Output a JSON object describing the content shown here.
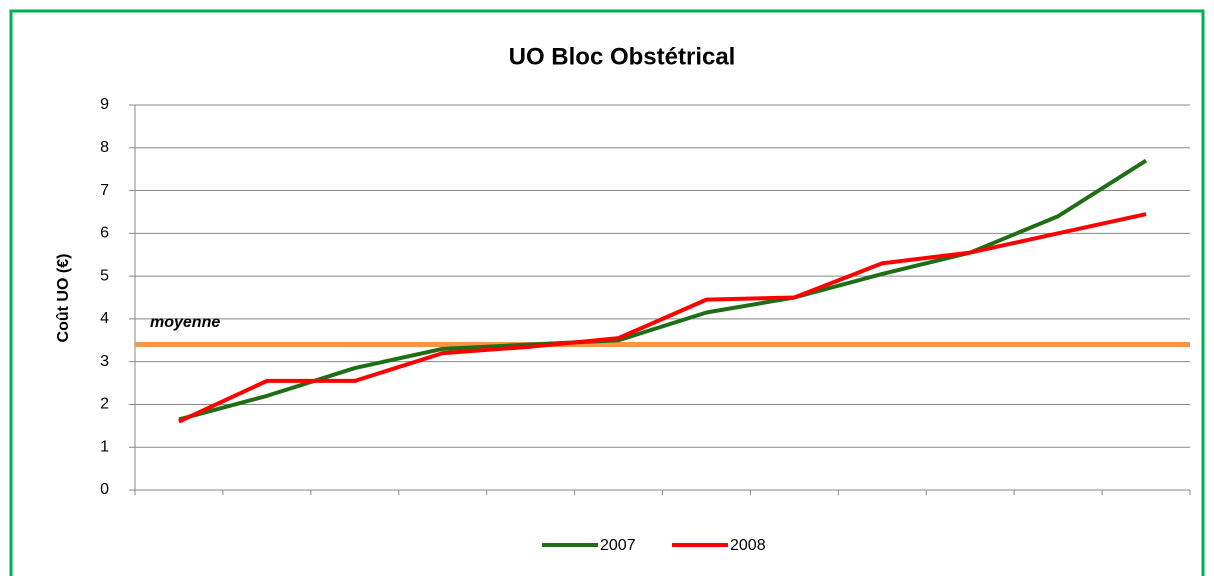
{
  "chart_data": {
    "type": "line",
    "title": "UO Bloc Obstétrical",
    "y_label": "Coût UO (€)",
    "categories": [
      null,
      null,
      null,
      null,
      null,
      null,
      null,
      null,
      null,
      null,
      null,
      null
    ],
    "series": [
      {
        "name": "2007",
        "color": "#1e6e16",
        "values": [
          1.65,
          2.2,
          2.85,
          3.3,
          3.4,
          3.5,
          4.15,
          4.5,
          5.05,
          5.55,
          6.4,
          7.7
        ]
      },
      {
        "name": "2008",
        "color": "#ff0000",
        "values": [
          1.6,
          2.55,
          2.55,
          3.2,
          3.35,
          3.55,
          4.45,
          4.5,
          5.3,
          5.55,
          6.0,
          6.45
        ]
      }
    ],
    "average": {
      "label": "moyenne",
      "value": 3.4,
      "color": "#f79646"
    },
    "ylim": [
      0,
      9
    ],
    "yticks": [
      0,
      1,
      2,
      3,
      4,
      5,
      6,
      7,
      8,
      9
    ],
    "grid": true,
    "legend": "bottom"
  }
}
